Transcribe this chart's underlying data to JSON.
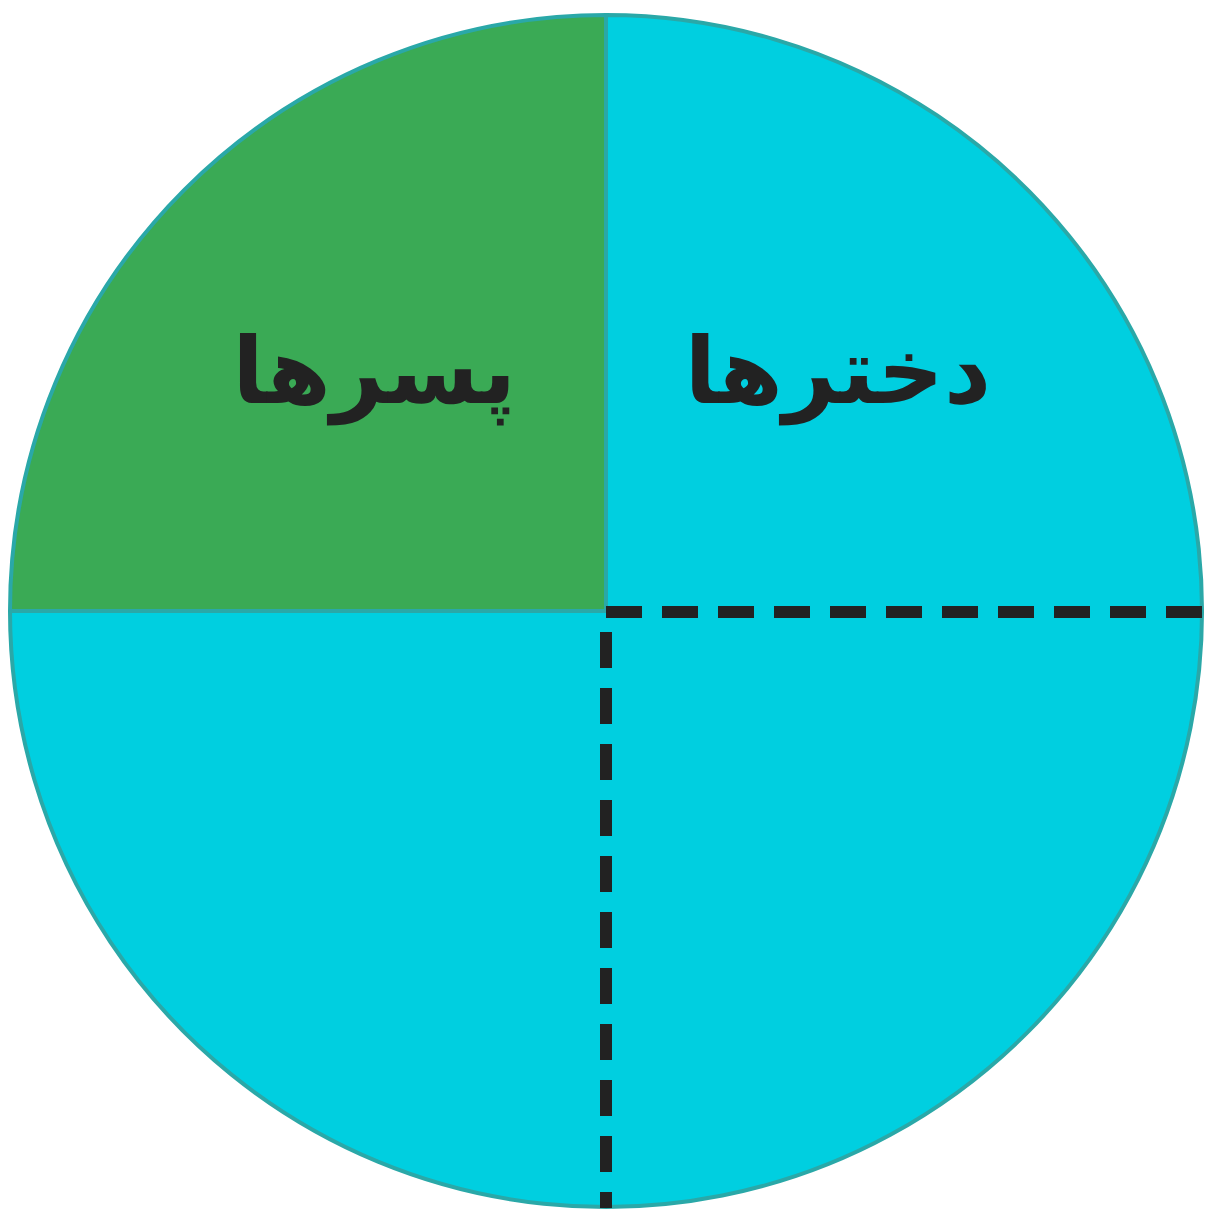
{
  "chart_data": {
    "type": "pie",
    "categories": [
      "دخترها",
      "پسرها"
    ],
    "values": [
      75,
      25
    ],
    "colors": [
      "#00cfe0",
      "#3aaa55"
    ]
  }
}
